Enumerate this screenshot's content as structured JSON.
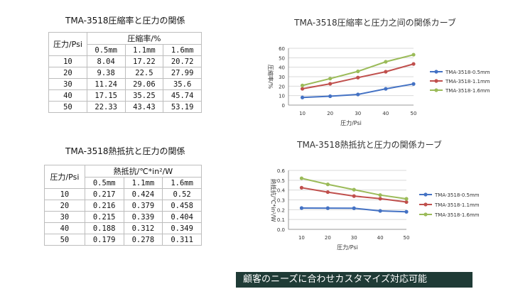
{
  "table1": {
    "title": "TMA-3518圧縮率と圧力の関係",
    "rowHeader": "圧力/Psi",
    "groupHeader": "圧縮率/%",
    "columns": [
      "0.5mm",
      "1.1mm",
      "1.6mm"
    ],
    "rows": [
      {
        "p": "10",
        "v": [
          "8.04",
          "17.22",
          "20.72"
        ]
      },
      {
        "p": "20",
        "v": [
          "9.38",
          "22.5",
          "27.99"
        ]
      },
      {
        "p": "30",
        "v": [
          "11.24",
          "29.06",
          "35.6"
        ]
      },
      {
        "p": "40",
        "v": [
          "17.15",
          "35.25",
          "45.74"
        ]
      },
      {
        "p": "50",
        "v": [
          "22.33",
          "43.43",
          "53.19"
        ]
      }
    ]
  },
  "table2": {
    "title": "TMA-3518熱抵抗と圧力の関係",
    "rowHeader": "圧力/Psi",
    "groupHeader": "熱抵抗/℃*in²/W",
    "columns": [
      "0.5mm",
      "1.1mm",
      "1.6mm"
    ],
    "rows": [
      {
        "p": "10",
        "v": [
          "0.217",
          "0.424",
          "0.52"
        ]
      },
      {
        "p": "20",
        "v": [
          "0.216",
          "0.379",
          "0.458"
        ]
      },
      {
        "p": "30",
        "v": [
          "0.215",
          "0.339",
          "0.404"
        ]
      },
      {
        "p": "40",
        "v": [
          "0.188",
          "0.312",
          "0.349"
        ]
      },
      {
        "p": "50",
        "v": [
          "0.179",
          "0.278",
          "0.311"
        ]
      }
    ]
  },
  "banner": "顧客のニーズに合わせカスタマイズ対応可能",
  "chart_data": [
    {
      "type": "line",
      "title": "TMA-3518圧縮率と圧力之间の関係カーブ",
      "xlabel": "圧力/Psi",
      "ylabel": "圧縮率/%",
      "x": [
        10,
        20,
        30,
        40,
        50
      ],
      "ylim": [
        0,
        60
      ],
      "yticks": [
        0,
        10,
        20,
        30,
        40,
        50,
        60
      ],
      "grid": true,
      "legend": "right",
      "series": [
        {
          "name": "TMA-3518-0.5mm",
          "color": "#4472c4",
          "values": [
            8.04,
            9.38,
            11.24,
            17.15,
            22.33
          ]
        },
        {
          "name": "TMA-3518-1.1mm",
          "color": "#c0504d",
          "values": [
            17.22,
            22.5,
            29.06,
            35.25,
            43.43
          ]
        },
        {
          "name": "TMA-3518-1.6mm",
          "color": "#9bbb59",
          "values": [
            20.72,
            27.99,
            35.6,
            45.74,
            53.19
          ]
        }
      ]
    },
    {
      "type": "line",
      "title": "TMA-3518熱抵抗と圧力の関係カーブ",
      "xlabel": "圧力/Psi",
      "ylabel": "熱抵抗/℃*in²/W",
      "x": [
        10,
        20,
        30,
        40,
        50
      ],
      "ylim": [
        0,
        0.6
      ],
      "yticks": [
        0,
        0.1,
        0.2,
        0.3,
        0.4,
        0.5,
        0.6
      ],
      "grid": true,
      "legend": "right",
      "series": [
        {
          "name": "TMA-3518-0.5mm",
          "color": "#4472c4",
          "values": [
            0.217,
            0.216,
            0.215,
            0.188,
            0.179
          ]
        },
        {
          "name": "TMA-3518-1.1mm",
          "color": "#c0504d",
          "values": [
            0.424,
            0.379,
            0.339,
            0.312,
            0.278
          ]
        },
        {
          "name": "TMA-3518-1.6mm",
          "color": "#9bbb59",
          "values": [
            0.52,
            0.458,
            0.404,
            0.349,
            0.311
          ]
        }
      ]
    }
  ]
}
